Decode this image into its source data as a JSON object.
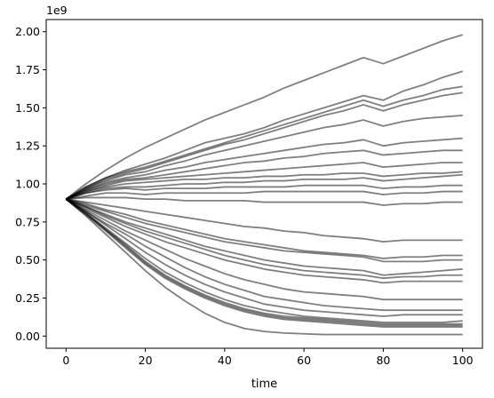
{
  "chart_data": {
    "type": "line",
    "title": "",
    "xlabel": "time",
    "ylabel": "",
    "y_offset_label": "1e9",
    "xlim": [
      -5,
      105
    ],
    "ylim": [
      -0.08,
      2.08
    ],
    "x_ticks": [
      0,
      20,
      40,
      60,
      80,
      100
    ],
    "x_tick_labels": [
      "0",
      "20",
      "40",
      "60",
      "80",
      "100"
    ],
    "y_ticks": [
      0.0,
      0.25,
      0.5,
      0.75,
      1.0,
      1.25,
      1.5,
      1.75,
      2.0
    ],
    "y_tick_labels": [
      "0.00",
      "0.25",
      "0.50",
      "0.75",
      "1.00",
      "1.25",
      "1.50",
      "1.75",
      "2.00"
    ],
    "y_unit_multiplier": 1000000000,
    "grid": false,
    "legend": "none",
    "line_color": "#000000",
    "line_opacity": 0.5,
    "x": [
      0,
      5,
      10,
      15,
      20,
      25,
      30,
      35,
      40,
      45,
      50,
      55,
      60,
      65,
      70,
      75,
      80,
      85,
      90,
      95,
      100
    ],
    "series": [
      {
        "values": [
          0.9,
          1.0,
          1.09,
          1.17,
          1.24,
          1.3,
          1.36,
          1.42,
          1.47,
          1.52,
          1.57,
          1.63,
          1.68,
          1.73,
          1.78,
          1.83,
          1.79,
          1.84,
          1.89,
          1.94,
          1.98
        ]
      },
      {
        "values": [
          0.9,
          0.98,
          1.04,
          1.09,
          1.13,
          1.17,
          1.22,
          1.27,
          1.3,
          1.33,
          1.37,
          1.42,
          1.46,
          1.5,
          1.54,
          1.58,
          1.55,
          1.61,
          1.65,
          1.7,
          1.74
        ]
      },
      {
        "values": [
          0.9,
          0.98,
          1.04,
          1.08,
          1.11,
          1.15,
          1.19,
          1.23,
          1.27,
          1.31,
          1.35,
          1.39,
          1.43,
          1.47,
          1.51,
          1.55,
          1.51,
          1.55,
          1.58,
          1.62,
          1.64
        ]
      },
      {
        "values": [
          0.9,
          0.97,
          1.03,
          1.07,
          1.1,
          1.14,
          1.18,
          1.22,
          1.26,
          1.29,
          1.33,
          1.37,
          1.41,
          1.45,
          1.48,
          1.52,
          1.48,
          1.52,
          1.55,
          1.58,
          1.6
        ]
      },
      {
        "values": [
          0.9,
          0.97,
          1.02,
          1.06,
          1.08,
          1.12,
          1.15,
          1.19,
          1.22,
          1.25,
          1.28,
          1.31,
          1.34,
          1.37,
          1.39,
          1.42,
          1.38,
          1.41,
          1.43,
          1.44,
          1.45
        ]
      },
      {
        "values": [
          0.9,
          0.96,
          1.01,
          1.04,
          1.06,
          1.09,
          1.11,
          1.14,
          1.16,
          1.18,
          1.2,
          1.22,
          1.24,
          1.26,
          1.27,
          1.29,
          1.25,
          1.27,
          1.28,
          1.29,
          1.3
        ]
      },
      {
        "values": [
          0.9,
          0.96,
          1.0,
          1.03,
          1.04,
          1.06,
          1.08,
          1.1,
          1.12,
          1.14,
          1.15,
          1.17,
          1.18,
          1.2,
          1.21,
          1.22,
          1.19,
          1.2,
          1.21,
          1.22,
          1.22
        ]
      },
      {
        "values": [
          0.9,
          0.95,
          0.99,
          1.02,
          1.03,
          1.04,
          1.05,
          1.06,
          1.07,
          1.08,
          1.09,
          1.1,
          1.11,
          1.12,
          1.13,
          1.14,
          1.11,
          1.12,
          1.13,
          1.14,
          1.14
        ]
      },
      {
        "values": [
          0.9,
          0.95,
          0.98,
          1.0,
          1.01,
          1.02,
          1.03,
          1.03,
          1.04,
          1.04,
          1.05,
          1.05,
          1.06,
          1.06,
          1.07,
          1.07,
          1.05,
          1.06,
          1.07,
          1.07,
          1.08
        ]
      },
      {
        "values": [
          0.9,
          0.94,
          0.97,
          0.98,
          0.98,
          0.99,
          1.0,
          1.0,
          1.01,
          1.01,
          1.02,
          1.02,
          1.03,
          1.03,
          1.03,
          1.04,
          1.02,
          1.03,
          1.04,
          1.05,
          1.06
        ]
      },
      {
        "values": [
          0.9,
          0.94,
          0.96,
          0.97,
          0.96,
          0.97,
          0.97,
          0.97,
          0.98,
          0.98,
          0.98,
          0.98,
          0.99,
          0.99,
          0.99,
          0.99,
          0.97,
          0.98,
          0.98,
          0.99,
          0.99
        ]
      },
      {
        "values": [
          0.9,
          0.92,
          0.94,
          0.94,
          0.93,
          0.94,
          0.94,
          0.94,
          0.94,
          0.94,
          0.95,
          0.95,
          0.95,
          0.95,
          0.95,
          0.95,
          0.93,
          0.94,
          0.94,
          0.95,
          0.95
        ]
      },
      {
        "values": [
          0.9,
          0.91,
          0.91,
          0.91,
          0.9,
          0.9,
          0.89,
          0.89,
          0.89,
          0.89,
          0.88,
          0.88,
          0.88,
          0.88,
          0.88,
          0.88,
          0.86,
          0.87,
          0.87,
          0.88,
          0.88
        ]
      },
      {
        "values": [
          0.9,
          0.88,
          0.86,
          0.84,
          0.82,
          0.8,
          0.78,
          0.76,
          0.74,
          0.72,
          0.71,
          0.69,
          0.68,
          0.66,
          0.65,
          0.64,
          0.62,
          0.63,
          0.63,
          0.63,
          0.63
        ]
      },
      {
        "values": [
          0.9,
          0.87,
          0.83,
          0.8,
          0.76,
          0.73,
          0.7,
          0.67,
          0.64,
          0.62,
          0.6,
          0.58,
          0.56,
          0.55,
          0.54,
          0.53,
          0.51,
          0.52,
          0.52,
          0.53,
          0.53
        ]
      },
      {
        "values": [
          0.9,
          0.86,
          0.82,
          0.78,
          0.74,
          0.71,
          0.68,
          0.65,
          0.62,
          0.6,
          0.58,
          0.56,
          0.55,
          0.54,
          0.53,
          0.52,
          0.49,
          0.49,
          0.49,
          0.5,
          0.5
        ]
      },
      {
        "values": [
          0.9,
          0.85,
          0.8,
          0.75,
          0.71,
          0.67,
          0.63,
          0.59,
          0.56,
          0.53,
          0.5,
          0.48,
          0.46,
          0.45,
          0.44,
          0.43,
          0.4,
          0.41,
          0.42,
          0.43,
          0.44
        ]
      },
      {
        "values": [
          0.9,
          0.85,
          0.79,
          0.74,
          0.69,
          0.65,
          0.61,
          0.57,
          0.53,
          0.5,
          0.47,
          0.45,
          0.43,
          0.42,
          0.41,
          0.4,
          0.38,
          0.39,
          0.39,
          0.4,
          0.4
        ]
      },
      {
        "values": [
          0.9,
          0.84,
          0.78,
          0.72,
          0.67,
          0.62,
          0.58,
          0.54,
          0.5,
          0.47,
          0.44,
          0.42,
          0.4,
          0.39,
          0.38,
          0.37,
          0.35,
          0.36,
          0.36,
          0.36,
          0.36
        ]
      },
      {
        "values": [
          0.9,
          0.83,
          0.76,
          0.69,
          0.63,
          0.57,
          0.51,
          0.46,
          0.41,
          0.37,
          0.34,
          0.31,
          0.29,
          0.28,
          0.27,
          0.26,
          0.24,
          0.24,
          0.24,
          0.24,
          0.24
        ]
      },
      {
        "values": [
          0.9,
          0.82,
          0.74,
          0.67,
          0.59,
          0.52,
          0.45,
          0.39,
          0.34,
          0.3,
          0.26,
          0.24,
          0.22,
          0.2,
          0.19,
          0.18,
          0.17,
          0.17,
          0.17,
          0.17,
          0.17
        ]
      },
      {
        "values": [
          0.9,
          0.82,
          0.73,
          0.64,
          0.55,
          0.47,
          0.4,
          0.34,
          0.29,
          0.25,
          0.21,
          0.19,
          0.17,
          0.16,
          0.15,
          0.14,
          0.13,
          0.14,
          0.14,
          0.14,
          0.14
        ]
      },
      {
        "values": [
          0.9,
          0.81,
          0.71,
          0.61,
          0.51,
          0.42,
          0.35,
          0.29,
          0.24,
          0.2,
          0.17,
          0.15,
          0.13,
          0.12,
          0.11,
          0.1,
          0.09,
          0.09,
          0.09,
          0.09,
          0.1
        ]
      },
      {
        "values": [
          0.9,
          0.81,
          0.7,
          0.6,
          0.49,
          0.4,
          0.33,
          0.27,
          0.22,
          0.18,
          0.15,
          0.13,
          0.12,
          0.11,
          0.1,
          0.09,
          0.08,
          0.08,
          0.08,
          0.08,
          0.08
        ]
      },
      {
        "values": [
          0.9,
          0.8,
          0.7,
          0.59,
          0.48,
          0.39,
          0.32,
          0.26,
          0.21,
          0.17,
          0.14,
          0.12,
          0.11,
          0.1,
          0.09,
          0.08,
          0.07,
          0.07,
          0.07,
          0.07,
          0.07
        ]
      },
      {
        "values": [
          0.9,
          0.8,
          0.69,
          0.58,
          0.47,
          0.38,
          0.31,
          0.25,
          0.2,
          0.16,
          0.13,
          0.11,
          0.1,
          0.09,
          0.08,
          0.07,
          0.06,
          0.06,
          0.06,
          0.06,
          0.06
        ]
      },
      {
        "values": [
          0.9,
          0.79,
          0.67,
          0.55,
          0.43,
          0.32,
          0.23,
          0.15,
          0.09,
          0.05,
          0.03,
          0.02,
          0.015,
          0.01,
          0.01,
          0.01,
          0.01,
          0.01,
          0.01,
          0.01,
          0.01
        ]
      }
    ]
  }
}
